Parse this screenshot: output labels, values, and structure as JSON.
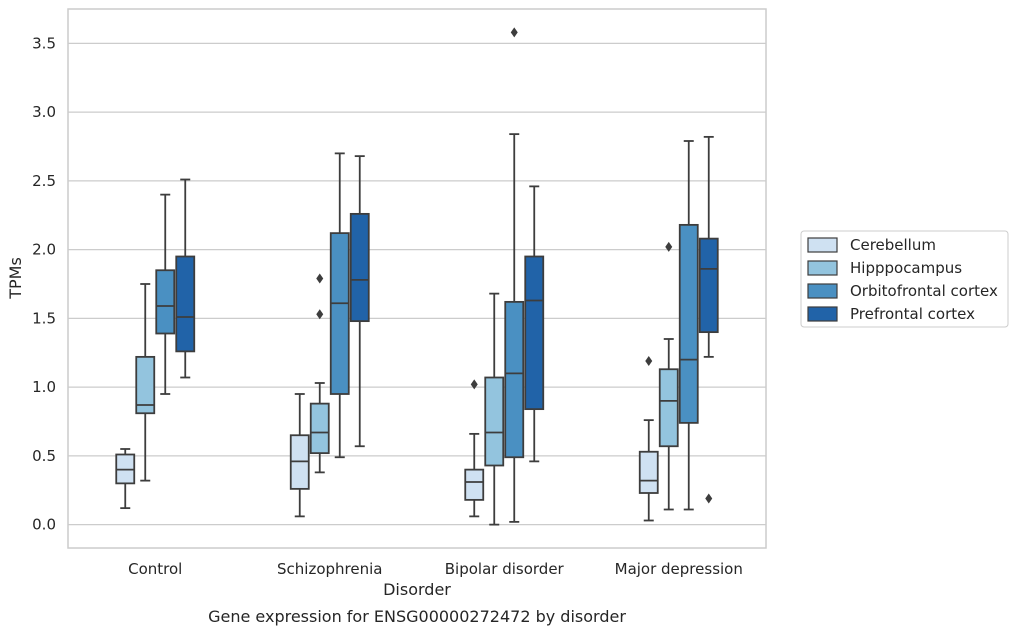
{
  "chart_data": {
    "type": "box",
    "caption": "Gene expression for ENSG00000272472 by disorder",
    "xlabel": "Disorder",
    "ylabel": "TPMs",
    "ylim": [
      -0.17,
      3.75
    ],
    "yticks": [
      "0.0",
      "0.5",
      "1.0",
      "1.5",
      "2.0",
      "2.5",
      "3.0",
      "3.5"
    ],
    "grid": "horizontal",
    "legend_position": "right",
    "categories": [
      "Control",
      "Schizophrenia",
      "Bipolar disorder",
      "Major depression"
    ],
    "series": [
      {
        "name": "Cerebellum",
        "color": "#cfe1f2",
        "boxes": [
          {
            "whisker_low": 0.12,
            "q1": 0.3,
            "median": 0.4,
            "q3": 0.51,
            "whisker_high": 0.55,
            "outliers": []
          },
          {
            "whisker_low": 0.06,
            "q1": 0.26,
            "median": 0.46,
            "q3": 0.65,
            "whisker_high": 0.95,
            "outliers": []
          },
          {
            "whisker_low": 0.06,
            "q1": 0.18,
            "median": 0.31,
            "q3": 0.4,
            "whisker_high": 0.66,
            "outliers": [
              1.02
            ]
          },
          {
            "whisker_low": 0.03,
            "q1": 0.23,
            "median": 0.32,
            "q3": 0.53,
            "whisker_high": 0.76,
            "outliers": [
              1.19
            ]
          }
        ]
      },
      {
        "name": "Hipppocampus",
        "color": "#93c4de",
        "boxes": [
          {
            "whisker_low": 0.32,
            "q1": 0.81,
            "median": 0.87,
            "q3": 1.22,
            "whisker_high": 1.75,
            "outliers": []
          },
          {
            "whisker_low": 0.38,
            "q1": 0.52,
            "median": 0.67,
            "q3": 0.88,
            "whisker_high": 1.03,
            "outliers": [
              1.53,
              1.79
            ]
          },
          {
            "whisker_low": 0.0,
            "q1": 0.43,
            "median": 0.67,
            "q3": 1.07,
            "whisker_high": 1.68,
            "outliers": []
          },
          {
            "whisker_low": 0.11,
            "q1": 0.57,
            "median": 0.9,
            "q3": 1.13,
            "whisker_high": 1.35,
            "outliers": [
              2.02
            ]
          }
        ]
      },
      {
        "name": "Orbitofrontal cortex",
        "color": "#4a90c2",
        "boxes": [
          {
            "whisker_low": 0.95,
            "q1": 1.39,
            "median": 1.59,
            "q3": 1.85,
            "whisker_high": 2.4,
            "outliers": []
          },
          {
            "whisker_low": 0.49,
            "q1": 0.95,
            "median": 1.61,
            "q3": 2.12,
            "whisker_high": 2.7,
            "outliers": []
          },
          {
            "whisker_low": 0.02,
            "q1": 0.49,
            "median": 1.1,
            "q3": 1.62,
            "whisker_high": 2.84,
            "outliers": [
              3.58
            ]
          },
          {
            "whisker_low": 0.11,
            "q1": 0.74,
            "median": 1.2,
            "q3": 2.18,
            "whisker_high": 2.79,
            "outliers": []
          }
        ]
      },
      {
        "name": "Prefrontal cortex",
        "color": "#2163a8",
        "boxes": [
          {
            "whisker_low": 1.07,
            "q1": 1.26,
            "median": 1.51,
            "q3": 1.95,
            "whisker_high": 2.51,
            "outliers": []
          },
          {
            "whisker_low": 0.57,
            "q1": 1.48,
            "median": 1.78,
            "q3": 2.26,
            "whisker_high": 2.68,
            "outliers": []
          },
          {
            "whisker_low": 0.46,
            "q1": 0.84,
            "median": 1.63,
            "q3": 1.95,
            "whisker_high": 2.46,
            "outliers": []
          },
          {
            "whisker_low": 1.22,
            "q1": 1.4,
            "median": 1.86,
            "q3": 2.08,
            "whisker_high": 2.82,
            "outliers": [
              0.19
            ]
          }
        ]
      }
    ]
  }
}
